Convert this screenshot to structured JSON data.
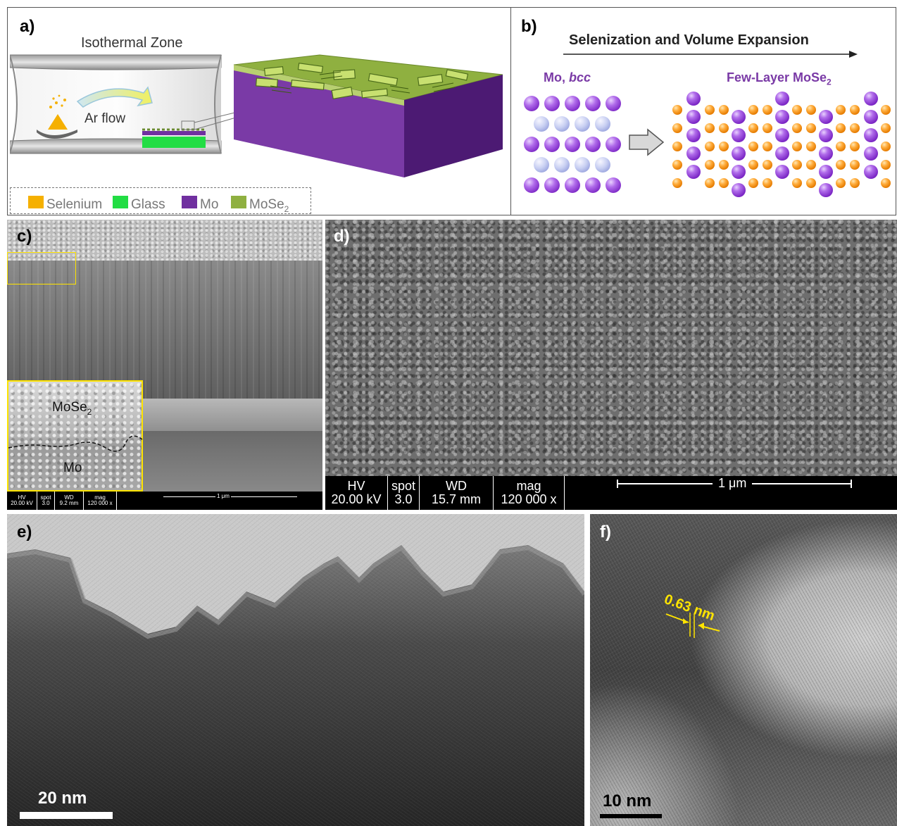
{
  "panels": {
    "a": {
      "label": "a)",
      "title": "Isothermal Zone",
      "flow_label": "Ar flow",
      "legend": [
        {
          "name": "Selenium",
          "color": "#f5b000"
        },
        {
          "name": "Glass",
          "color": "#22dd44"
        },
        {
          "name": "Mo",
          "color": "#7030a0"
        },
        {
          "name": "MoSe",
          "sub": "2",
          "color": "#8fb040"
        }
      ]
    },
    "b": {
      "label": "b)",
      "process": "Selenization and Volume Expansion",
      "left_title": "Mo, ",
      "left_title_italic": "bcc",
      "right_title": "Few-Layer MoSe",
      "right_title_sub": "2"
    },
    "c": {
      "label": "c)",
      "inset_top": "MoSe",
      "inset_top_sub": "2",
      "inset_bottom": "Mo",
      "infobar": [
        {
          "head": "HV",
          "value": "20.00 kV"
        },
        {
          "head": "spot",
          "value": "3.0"
        },
        {
          "head": "WD",
          "value": "9.2 mm"
        },
        {
          "head": "mag",
          "value": "120 000 x"
        }
      ],
      "scale": "1 μm"
    },
    "d": {
      "label": "d)",
      "infobar": [
        {
          "head": "HV",
          "value": "20.00 kV"
        },
        {
          "head": "spot",
          "value": "3.0"
        },
        {
          "head": "WD",
          "value": "15.7 mm"
        },
        {
          "head": "mag",
          "value": "120 000 x"
        }
      ],
      "scale": "1 μm"
    },
    "e": {
      "label": "e)",
      "scale": "20 nm"
    },
    "f": {
      "label": "f)",
      "scale": "10 nm",
      "spacing": "0.63 nm"
    }
  }
}
